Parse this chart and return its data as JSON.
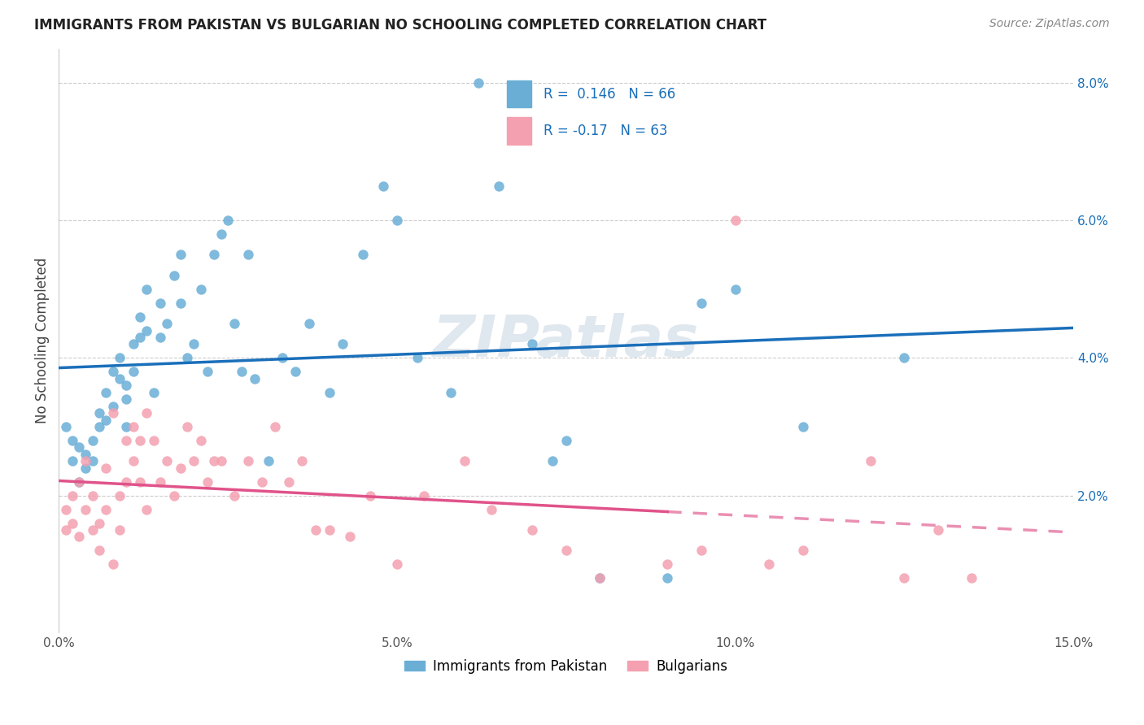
{
  "title": "IMMIGRANTS FROM PAKISTAN VS BULGARIAN NO SCHOOLING COMPLETED CORRELATION CHART",
  "source": "Source: ZipAtlas.com",
  "ylabel": "No Schooling Completed",
  "xlim": [
    0.0,
    0.15
  ],
  "ylim": [
    0.0,
    0.085
  ],
  "blue_R": 0.146,
  "blue_N": 66,
  "pink_R": -0.17,
  "pink_N": 63,
  "blue_color": "#6aaed6",
  "pink_color": "#f4a0b0",
  "blue_line_color": "#1a6fba",
  "pink_line_color": "#e0538a",
  "legend_label_blue": "Immigrants from Pakistan",
  "legend_label_pink": "Bulgarians",
  "pakistan_x": [
    0.001,
    0.002,
    0.002,
    0.003,
    0.003,
    0.004,
    0.004,
    0.005,
    0.005,
    0.006,
    0.006,
    0.007,
    0.007,
    0.008,
    0.008,
    0.009,
    0.009,
    0.01,
    0.01,
    0.01,
    0.011,
    0.011,
    0.012,
    0.012,
    0.013,
    0.013,
    0.014,
    0.015,
    0.015,
    0.016,
    0.017,
    0.018,
    0.018,
    0.019,
    0.02,
    0.021,
    0.022,
    0.023,
    0.024,
    0.025,
    0.026,
    0.027,
    0.028,
    0.029,
    0.031,
    0.033,
    0.035,
    0.037,
    0.04,
    0.042,
    0.045,
    0.048,
    0.05,
    0.053,
    0.058,
    0.062,
    0.065,
    0.07,
    0.073,
    0.075,
    0.08,
    0.09,
    0.095,
    0.1,
    0.11,
    0.125
  ],
  "pakistan_y": [
    0.03,
    0.025,
    0.028,
    0.027,
    0.022,
    0.026,
    0.024,
    0.025,
    0.028,
    0.03,
    0.032,
    0.035,
    0.031,
    0.033,
    0.038,
    0.04,
    0.037,
    0.034,
    0.036,
    0.03,
    0.042,
    0.038,
    0.043,
    0.046,
    0.044,
    0.05,
    0.035,
    0.048,
    0.043,
    0.045,
    0.052,
    0.055,
    0.048,
    0.04,
    0.042,
    0.05,
    0.038,
    0.055,
    0.058,
    0.06,
    0.045,
    0.038,
    0.055,
    0.037,
    0.025,
    0.04,
    0.038,
    0.045,
    0.035,
    0.042,
    0.055,
    0.065,
    0.06,
    0.04,
    0.035,
    0.08,
    0.065,
    0.042,
    0.025,
    0.028,
    0.008,
    0.008,
    0.048,
    0.05,
    0.03,
    0.04
  ],
  "bulgarian_x": [
    0.001,
    0.001,
    0.002,
    0.002,
    0.003,
    0.003,
    0.004,
    0.004,
    0.005,
    0.005,
    0.006,
    0.006,
    0.007,
    0.007,
    0.008,
    0.008,
    0.009,
    0.009,
    0.01,
    0.01,
    0.011,
    0.011,
    0.012,
    0.012,
    0.013,
    0.013,
    0.014,
    0.015,
    0.016,
    0.017,
    0.018,
    0.019,
    0.02,
    0.021,
    0.022,
    0.023,
    0.024,
    0.026,
    0.028,
    0.03,
    0.032,
    0.034,
    0.036,
    0.038,
    0.04,
    0.043,
    0.046,
    0.05,
    0.054,
    0.06,
    0.064,
    0.07,
    0.075,
    0.08,
    0.09,
    0.095,
    0.1,
    0.105,
    0.11,
    0.12,
    0.125,
    0.13,
    0.135
  ],
  "bulgarian_y": [
    0.018,
    0.015,
    0.02,
    0.016,
    0.022,
    0.014,
    0.025,
    0.018,
    0.02,
    0.015,
    0.016,
    0.012,
    0.018,
    0.024,
    0.032,
    0.01,
    0.02,
    0.015,
    0.028,
    0.022,
    0.03,
    0.025,
    0.028,
    0.022,
    0.018,
    0.032,
    0.028,
    0.022,
    0.025,
    0.02,
    0.024,
    0.03,
    0.025,
    0.028,
    0.022,
    0.025,
    0.025,
    0.02,
    0.025,
    0.022,
    0.03,
    0.022,
    0.025,
    0.015,
    0.015,
    0.014,
    0.02,
    0.01,
    0.02,
    0.025,
    0.018,
    0.015,
    0.012,
    0.008,
    0.01,
    0.012,
    0.06,
    0.01,
    0.012,
    0.025,
    0.008,
    0.015,
    0.008
  ],
  "watermark": "ZIPatlas",
  "background_color": "#ffffff",
  "grid_color": "#cccccc"
}
